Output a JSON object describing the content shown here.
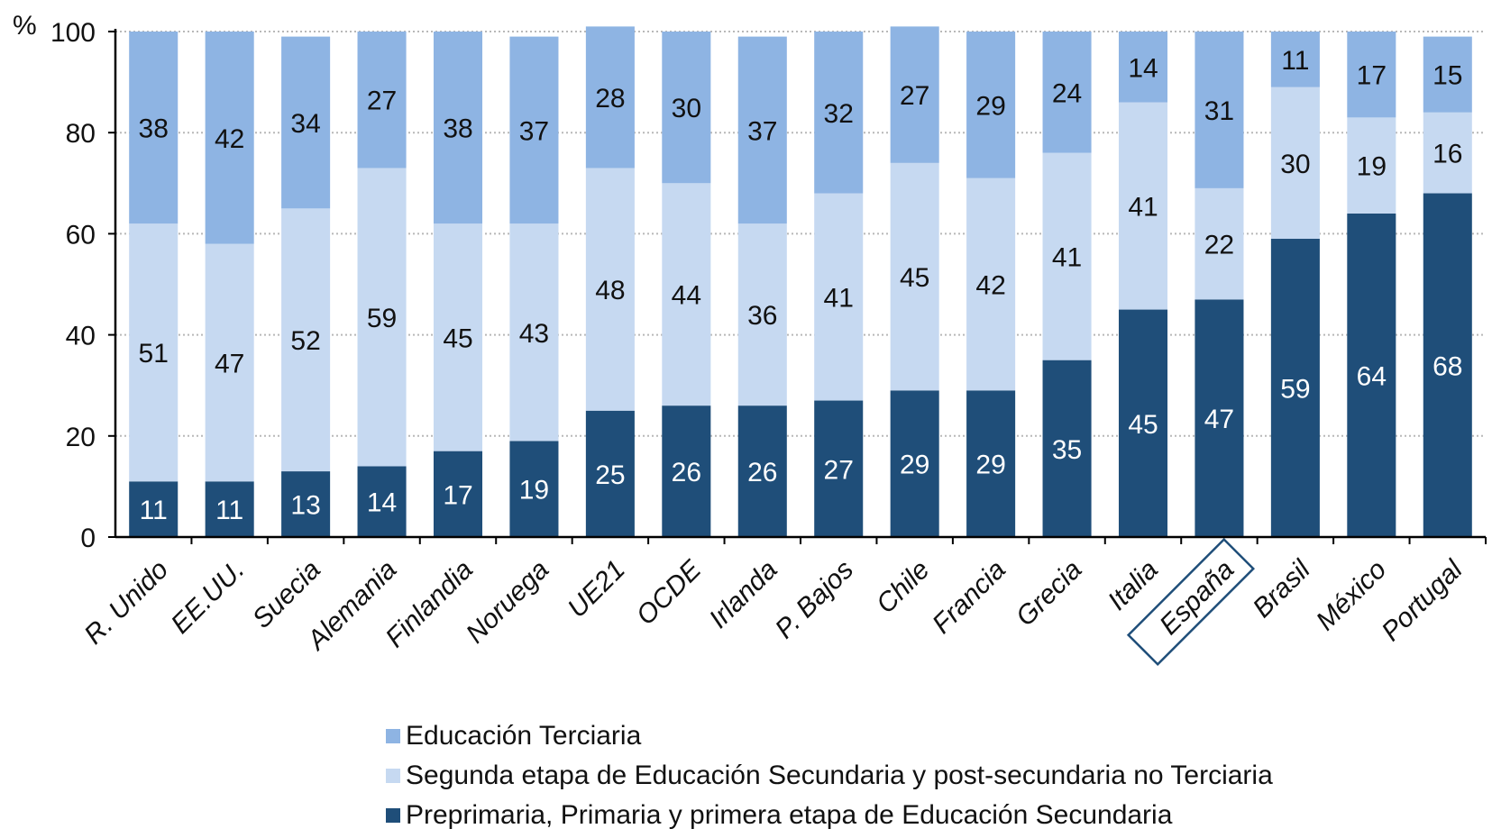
{
  "chart_data": {
    "type": "bar",
    "stacked": true,
    "y_unit_label": "%",
    "ylim": [
      0,
      100
    ],
    "yticks": [
      0,
      20,
      40,
      60,
      80,
      100
    ],
    "grid": true,
    "categories": [
      "R. Unido",
      "EE.UU.",
      "Suecia",
      "Alemania",
      "Finlandia",
      "Noruega",
      "UE21",
      "OCDE",
      "Irlanda",
      "P. Bajos",
      "Chile",
      "Francia",
      "Grecia",
      "Italia",
      "España",
      "Brasil",
      "México",
      "Portugal"
    ],
    "highlighted_category": "España",
    "series": [
      {
        "name": "Preprimaria, Primaria y primera etapa de Educación Secundaria",
        "color": "#1F4E79",
        "label_color": "#ffffff",
        "values": [
          11,
          11,
          13,
          14,
          17,
          19,
          25,
          26,
          26,
          27,
          29,
          29,
          35,
          45,
          47,
          59,
          64,
          68
        ]
      },
      {
        "name": "Segunda etapa de Educación Secundaria y post-secundaria no Terciaria",
        "color": "#C6D9F1",
        "label_color": "#111111",
        "values": [
          51,
          47,
          52,
          59,
          45,
          43,
          48,
          44,
          36,
          41,
          45,
          42,
          41,
          41,
          22,
          30,
          19,
          16
        ]
      },
      {
        "name": "Educación Terciaria",
        "color": "#8EB4E3",
        "label_color": "#111111",
        "values": [
          38,
          42,
          34,
          27,
          38,
          37,
          28,
          30,
          37,
          32,
          27,
          29,
          24,
          14,
          31,
          11,
          17,
          15
        ]
      }
    ],
    "legend_order": [
      2,
      1,
      0
    ],
    "legend_position": "bottom"
  }
}
